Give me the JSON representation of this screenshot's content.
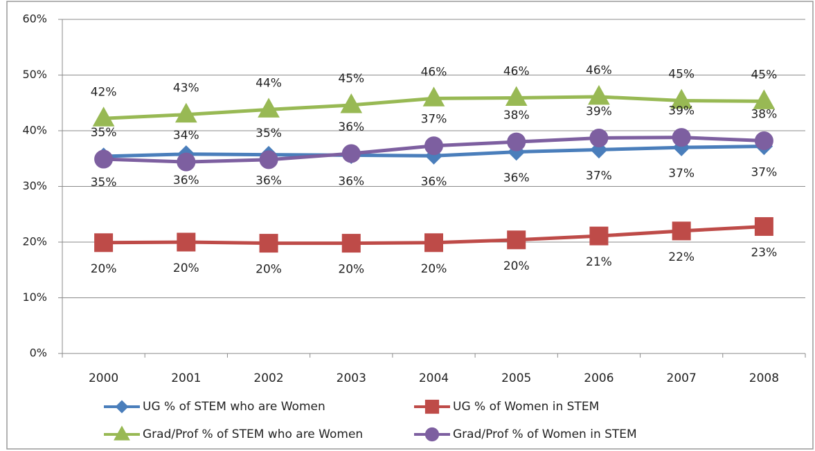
{
  "chart_data": {
    "type": "line",
    "categories": [
      "2000",
      "2001",
      "2002",
      "2003",
      "2004",
      "2005",
      "2006",
      "2007",
      "2008"
    ],
    "ylim": [
      0,
      60
    ],
    "yticks": [
      {
        "value": 0,
        "label": "0%"
      },
      {
        "value": 10,
        "label": "10%"
      },
      {
        "value": 20,
        "label": "20%"
      },
      {
        "value": 30,
        "label": "30%"
      },
      {
        "value": 40,
        "label": "40%"
      },
      {
        "value": 50,
        "label": "50%"
      },
      {
        "value": 60,
        "label": "60%"
      }
    ],
    "grid": true,
    "legend": "bottom",
    "series": [
      {
        "name": "UG % of STEM who are Women",
        "color": "#4a7ebb",
        "marker": "diamond",
        "values": [
          35.4,
          35.8,
          35.7,
          35.6,
          35.5,
          36.2,
          36.6,
          37.0,
          37.2
        ],
        "value_labels": [
          "35%",
          "36%",
          "36%",
          "36%",
          "36%",
          "36%",
          "37%",
          "37%",
          "37%"
        ]
      },
      {
        "name": "UG % of Women in STEM",
        "color": "#be4b48",
        "marker": "square",
        "values": [
          19.9,
          20.0,
          19.8,
          19.8,
          19.9,
          20.4,
          21.1,
          22.0,
          22.8
        ],
        "value_labels": [
          "20%",
          "20%",
          "20%",
          "20%",
          "20%",
          "20%",
          "21%",
          "22%",
          "23%"
        ]
      },
      {
        "name": "Grad/Prof % of STEM who are Women",
        "color": "#98b954",
        "marker": "triangle",
        "values": [
          42.2,
          42.9,
          43.8,
          44.6,
          45.8,
          45.9,
          46.1,
          45.4,
          45.3
        ],
        "value_labels": [
          "42%",
          "43%",
          "44%",
          "45%",
          "46%",
          "46%",
          "46%",
          "45%",
          "45%"
        ]
      },
      {
        "name": "Grad/Prof % of Women in STEM",
        "color": "#7d5fa0",
        "marker": "circle",
        "values": [
          34.9,
          34.4,
          34.8,
          35.9,
          37.3,
          38.0,
          38.7,
          38.8,
          38.2
        ],
        "value_labels": [
          "35%",
          "34%",
          "35%",
          "36%",
          "37%",
          "38%",
          "39%",
          "39%",
          "38%"
        ]
      }
    ]
  }
}
